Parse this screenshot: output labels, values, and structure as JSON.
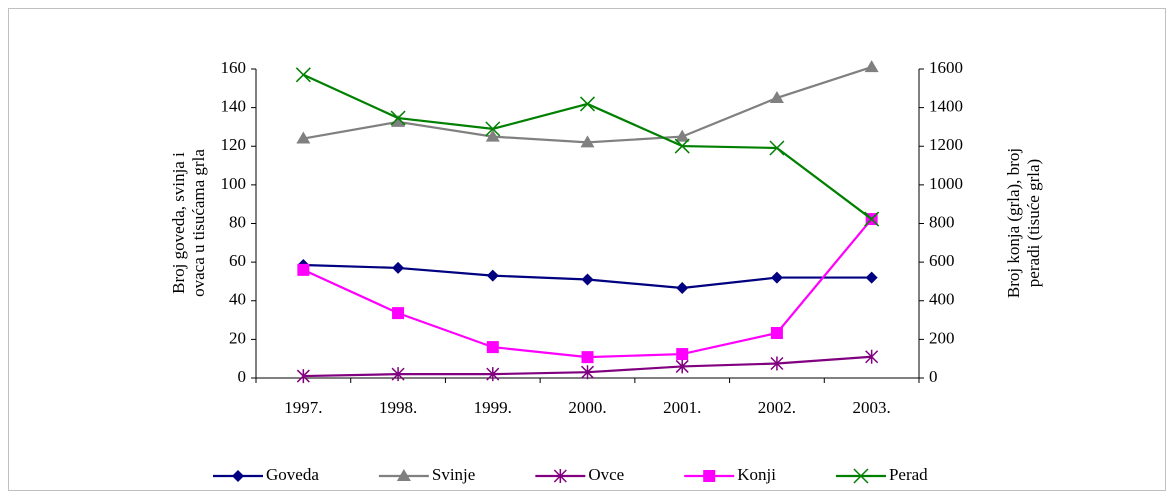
{
  "chart_data": {
    "type": "line",
    "categories": [
      "1997.",
      "1998.",
      "1999.",
      "2000.",
      "2001.",
      "2002.",
      "2003."
    ],
    "ylabel": "Broj goveda, svinja i ovaca u tisućama grla",
    "y2label": "Broj konja (grla), broj peradi (tisuće grla)",
    "ylim": [
      0,
      160
    ],
    "yticks": [
      0,
      20,
      40,
      60,
      80,
      100,
      120,
      140,
      160
    ],
    "y2lim": [
      0,
      1600
    ],
    "y2ticks": [
      0,
      200,
      400,
      600,
      800,
      1000,
      1200,
      1400,
      1600
    ],
    "legend": "bottom",
    "grid": false,
    "series": [
      {
        "name": "Goveda",
        "color": "#000080",
        "marker": "diamond",
        "values": [
          58.5,
          57,
          53,
          51,
          46.6,
          52,
          52
        ]
      },
      {
        "name": "Svinje",
        "color": "#808080",
        "marker": "triangle",
        "values": [
          124,
          132.6,
          125,
          122,
          125,
          145,
          161
        ]
      },
      {
        "name": "Ovce",
        "color": "#800080",
        "marker": "star",
        "values": [
          1,
          2,
          2,
          3,
          6,
          7.5,
          11
        ]
      },
      {
        "name": "Konji",
        "color": "#ff00ff",
        "marker": "square",
        "axis": "y2",
        "values": [
          560,
          336,
          160,
          108,
          124,
          233,
          823
        ]
      },
      {
        "name": "Perad",
        "color": "#008000",
        "marker": "x",
        "axis": "y2",
        "values": [
          1570,
          1346,
          1290,
          1419,
          1201,
          1191,
          823
        ]
      }
    ]
  }
}
